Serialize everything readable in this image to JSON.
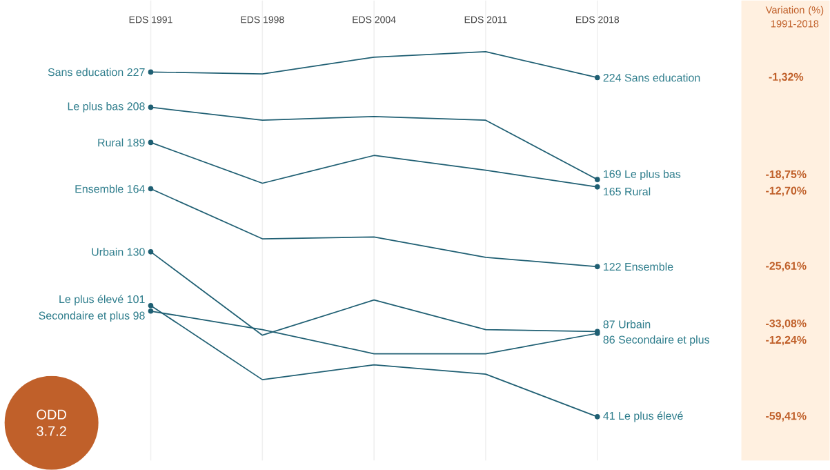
{
  "chart_data": {
    "type": "line",
    "categories": [
      "EDS 1991",
      "EDS 1998",
      "EDS 2004",
      "EDS 2011",
      "EDS 2018"
    ],
    "series": [
      {
        "name": "Sans education",
        "color": "#1f5f73",
        "values": [
          227,
          226,
          235,
          238,
          224
        ],
        "value_labels": [
          "227",
          null,
          null,
          null,
          "224"
        ]
      },
      {
        "name": "Le plus bas",
        "color": "#1f5f73",
        "values": [
          208,
          201,
          203,
          201,
          169
        ],
        "value_labels": [
          "208",
          null,
          null,
          null,
          "169"
        ]
      },
      {
        "name": "Rural",
        "color": "#1f5f73",
        "values": [
          189,
          167,
          182,
          174,
          165
        ],
        "value_labels": [
          "189",
          null,
          null,
          null,
          "165"
        ]
      },
      {
        "name": "Ensemble",
        "color": "#1f5f73",
        "values": [
          164,
          137,
          138,
          127,
          122
        ],
        "value_labels": [
          "164",
          null,
          null,
          null,
          "122"
        ]
      },
      {
        "name": "Urbain",
        "color": "#1f5f73",
        "values": [
          130,
          85,
          104,
          88,
          87
        ],
        "value_labels": [
          "130",
          null,
          null,
          null,
          "87"
        ]
      },
      {
        "name": "Secondaire et plus",
        "color": "#1f5f73",
        "values": [
          98,
          88,
          75,
          75,
          86
        ],
        "value_labels": [
          "98",
          null,
          null,
          null,
          "86"
        ]
      },
      {
        "name": "Le plus élevé",
        "color": "#1f5f73",
        "values": [
          101,
          61,
          69,
          64,
          41
        ],
        "value_labels": [
          "101",
          null,
          null,
          null,
          "41"
        ]
      }
    ],
    "annotations": [
      "Variation (%) 1991-2018",
      "ODD 3.7.2",
      "-1,32%",
      "-18,75%",
      "-12,70%",
      "-25,61%",
      "-33,08%",
      "-12,24%",
      "-59,41%"
    ],
    "grid": "x",
    "line_style": "solid",
    "legend": false
  }
}
